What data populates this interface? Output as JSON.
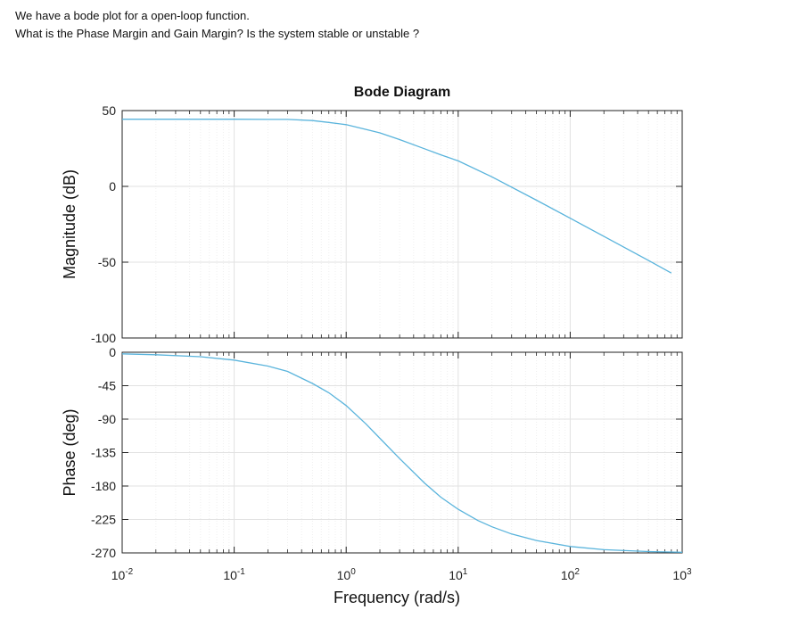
{
  "question": {
    "line1": "We have a bode plot for a open-loop function.",
    "line2": "What is the Phase Margin and Gain Margin? Is the system stable or unstable ?"
  },
  "colors": {
    "curve": "#5ab4dc",
    "axes": "#222222",
    "grid": "#e2e2e2",
    "grid_minor": "#efefef",
    "background": "#ffffff"
  },
  "chart_data": {
    "type": "line",
    "title": "Bode Diagram",
    "xlabel": "Frequency  (rad/s)",
    "x_scale": "log",
    "xlim": [
      0.01,
      1000
    ],
    "x_ticks": [
      {
        "value": 0.01,
        "base": "10",
        "exp": "-2"
      },
      {
        "value": 0.1,
        "base": "10",
        "exp": "-1"
      },
      {
        "value": 1,
        "base": "10",
        "exp": "0"
      },
      {
        "value": 10,
        "base": "10",
        "exp": "1"
      },
      {
        "value": 100,
        "base": "10",
        "exp": "2"
      },
      {
        "value": 1000,
        "base": "10",
        "exp": "3"
      }
    ],
    "grid": true,
    "panels": [
      {
        "name": "magnitude",
        "ylabel": "Magnitude (dB)",
        "ylim": [
          -100,
          50
        ],
        "y_ticks": [
          "50",
          "0",
          "-50",
          "-100"
        ],
        "series": [
          {
            "x": [
              0.01,
              0.02,
              0.05,
              0.1,
              0.2,
              0.3,
              0.5,
              0.7,
              1,
              1.5,
              2,
              3,
              5,
              7,
              10,
              20,
              50,
              100,
              200,
              500,
              800
            ],
            "y": [
              44.3,
              44.3,
              44.3,
              44.3,
              44.2,
              44.2,
              43.4,
              42.2,
              40.7,
              37.6,
              35.3,
              30.9,
              24.8,
              20.8,
              16.8,
              6.3,
              -9.1,
              -21.0,
              -33.0,
              -48.9,
              -57.2
            ]
          }
        ]
      },
      {
        "name": "phase",
        "ylabel": "Phase (deg)",
        "ylim": [
          -270,
          0
        ],
        "y_ticks": [
          "0",
          "-45",
          "-90",
          "-135",
          "-180",
          "-225",
          "-270"
        ],
        "series": [
          {
            "x": [
              0.01,
              0.02,
              0.05,
              0.1,
              0.2,
              0.3,
              0.5,
              0.7,
              1,
              1.5,
              2,
              3,
              5,
              7,
              10,
              15,
              20,
              30,
              50,
              100,
              200,
              500,
              1000
            ],
            "y": [
              -2.2,
              -3.4,
              -6.0,
              -10.5,
              -18.6,
              -25.8,
              -42.0,
              -54.5,
              -71.7,
              -96.4,
              -115.8,
              -143.0,
              -175.9,
              -195.0,
              -211.3,
              -226.4,
              -234.8,
              -244.5,
              -253.3,
              -261.4,
              -265.7,
              -268.2,
              -269.1
            ]
          }
        ]
      }
    ]
  }
}
